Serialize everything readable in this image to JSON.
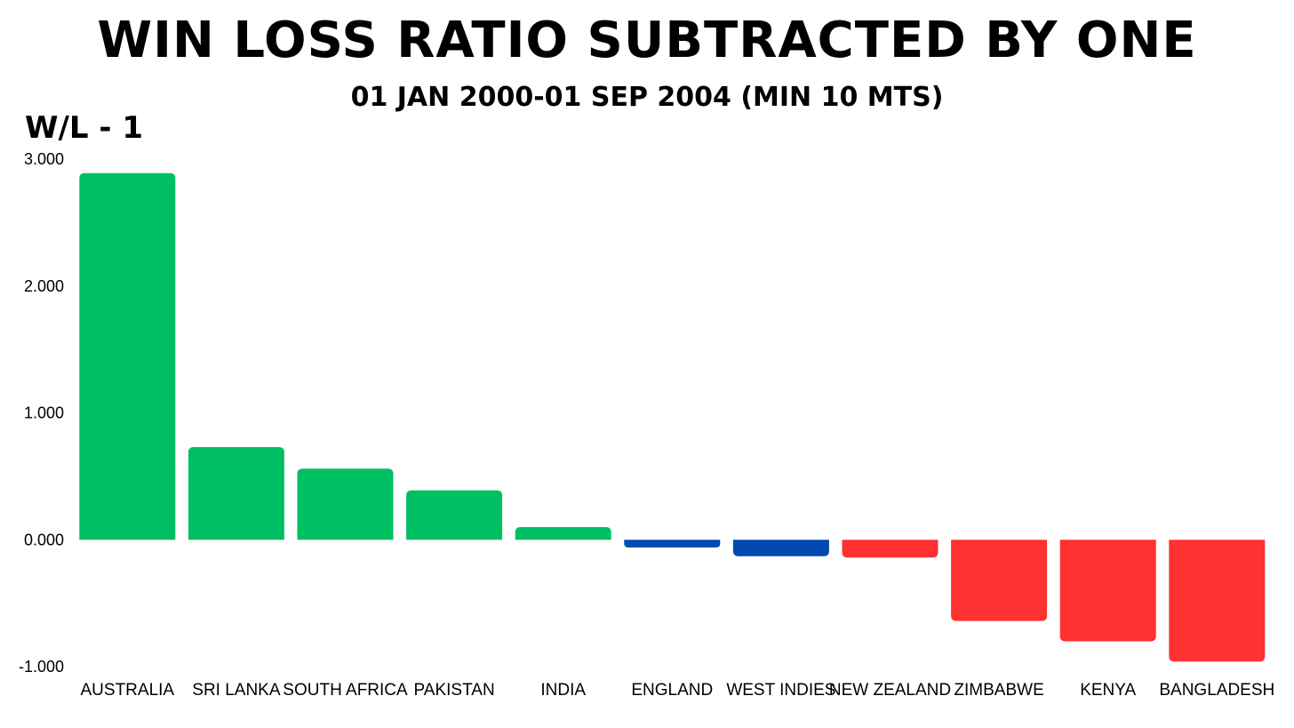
{
  "chart_data": {
    "type": "bar",
    "title": "WIN LOSS RATIO SUBTRACTED BY ONE",
    "subtitle": "01 JAN 2000-01 SEP 2004 (MIN 10 MTS)",
    "ylabel": "W/L - 1",
    "xlabel": "",
    "ylim": [
      -1,
      3
    ],
    "yticks": [
      "3.000",
      "2.000",
      "1.000",
      "0.000",
      "-1.000"
    ],
    "ytick_values": [
      3,
      2,
      1,
      0,
      -1
    ],
    "grid": false,
    "categories": [
      "AUSTRALIA",
      "SRI LANKA",
      "SOUTH AFRICA",
      "PAKISTAN",
      "INDIA",
      "ENGLAND",
      "WEST INDIES",
      "NEW ZEALAND",
      "ZIMBABWE",
      "KENYA",
      "BANGLADESH"
    ],
    "values": [
      2.89,
      0.73,
      0.56,
      0.39,
      0.1,
      -0.06,
      -0.13,
      -0.14,
      -0.64,
      -0.8,
      -0.96
    ],
    "colors": [
      "#00bf63",
      "#00bf63",
      "#00bf63",
      "#00bf63",
      "#00bf63",
      "#004aad",
      "#004aad",
      "#ff3131",
      "#ff3131",
      "#ff3131",
      "#ff3131"
    ]
  }
}
